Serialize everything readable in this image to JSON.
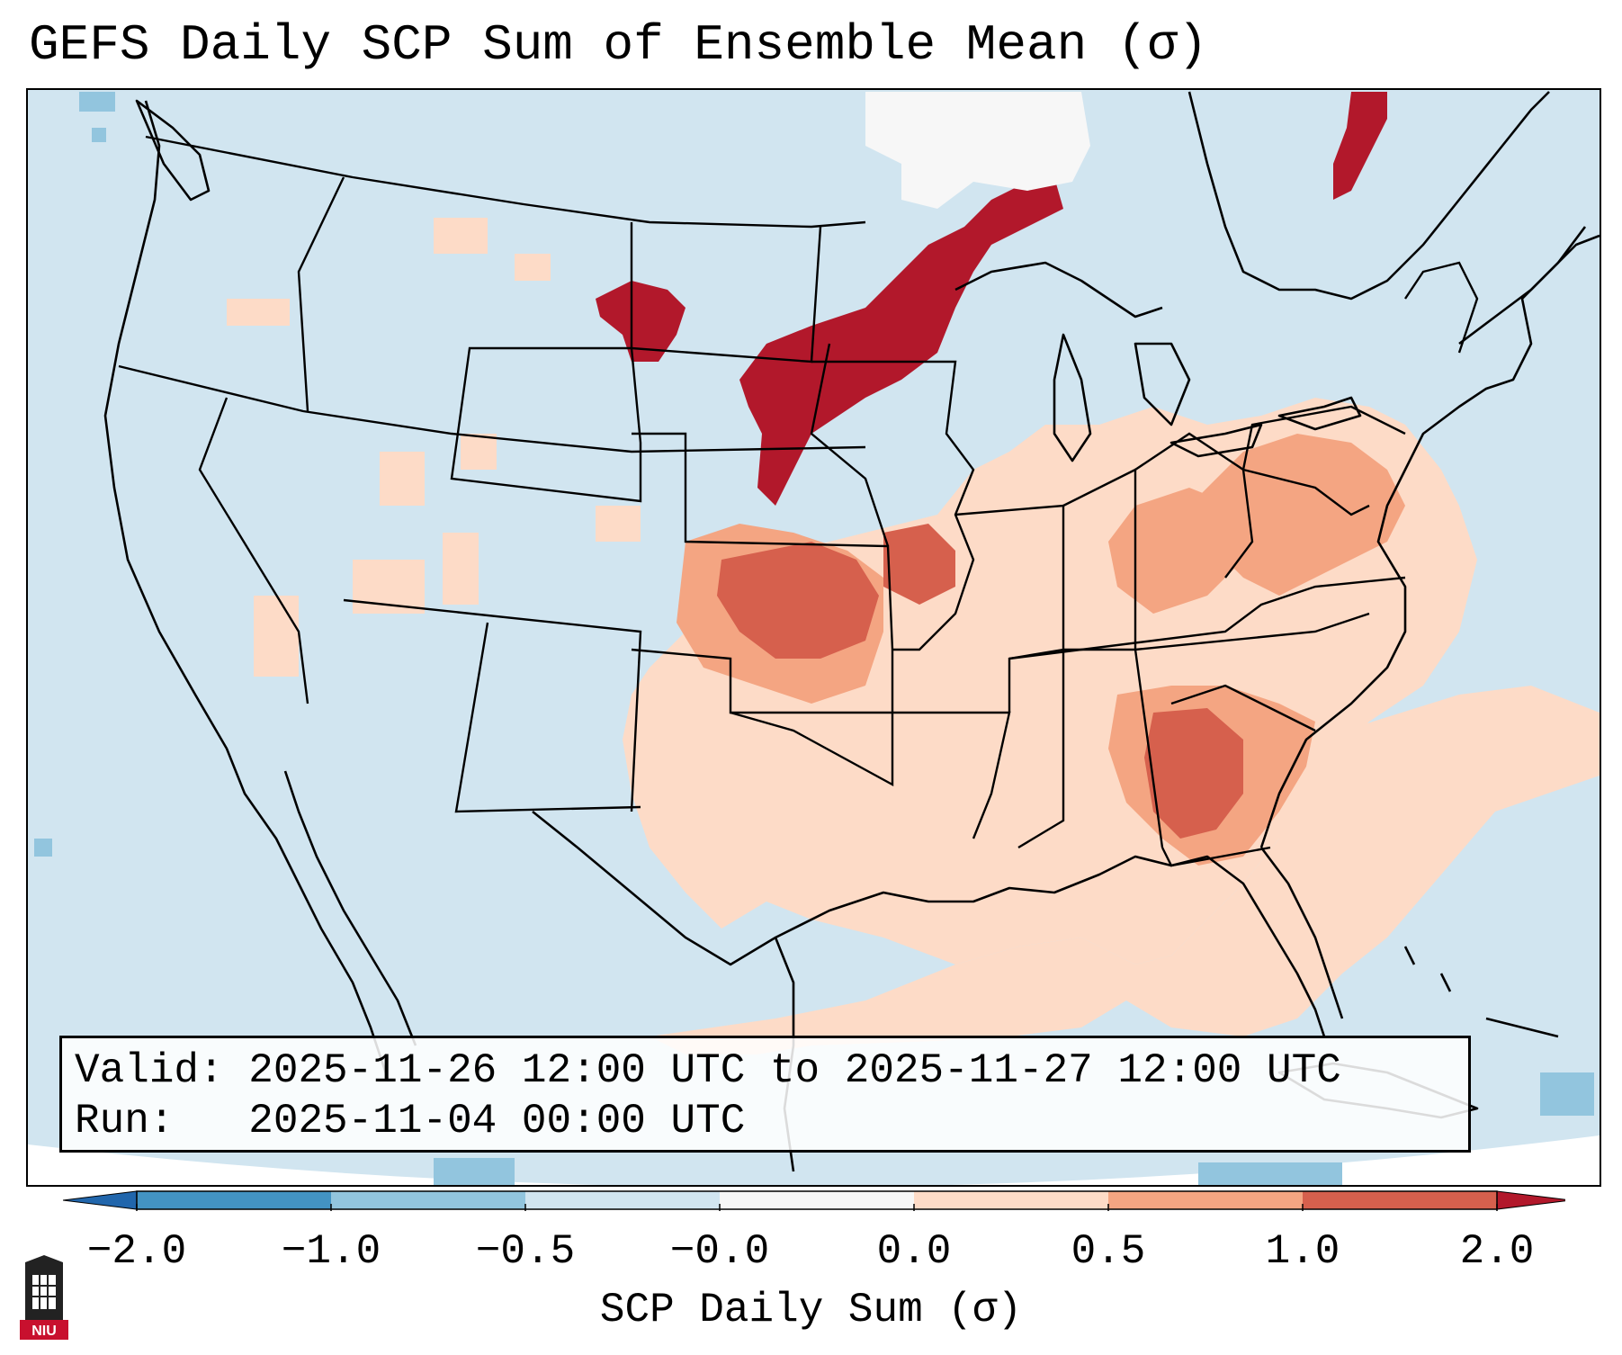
{
  "title": "GEFS Daily SCP Sum of Ensemble Mean (σ)",
  "info": {
    "valid_line": "Valid: 2025-11-26 12:00 UTC to 2025-11-27 12:00 UTC",
    "run_line": "Run:   2025-11-04 00:00 UTC"
  },
  "colorbar": {
    "label": "SCP Daily Sum (σ)",
    "ticks": [
      "−2.0",
      "−1.0",
      "−0.5",
      "−0.0",
      "0.0",
      "0.5",
      "1.0",
      "2.0"
    ],
    "bins": [
      {
        "range": "<-2.0",
        "color": "#2166ac"
      },
      {
        "range": "-2.0 to -1.0",
        "color": "#4393c3"
      },
      {
        "range": "-1.0 to -0.5",
        "color": "#92c5de"
      },
      {
        "range": "-0.5 to -0.0",
        "color": "#d1e5f0"
      },
      {
        "range": "-0.0 to 0.0",
        "color": "#f7f7f7"
      },
      {
        "range": "0.0 to 0.5",
        "color": "#fddbc7"
      },
      {
        "range": "0.5 to 1.0",
        "color": "#f4a582"
      },
      {
        "range": "1.0 to 2.0",
        "color": "#d6604d"
      },
      {
        "range": ">2.0",
        "color": "#b2182b"
      }
    ]
  },
  "map": {
    "background_color": "#d1e5f0",
    "regions": [
      {
        "name": "Northern Plains / Upper Midwest",
        "value_class": ">2.0"
      },
      {
        "name": "Kansas / Oklahoma / Missouri",
        "value_class": "1.0 to 2.0"
      },
      {
        "name": "Georgia",
        "value_class": "1.0 to 2.0"
      },
      {
        "name": "Texas / Lower Mississippi Valley / Southeast",
        "value_class": "0.0 to 0.5"
      },
      {
        "name": "Ohio Valley / Mid-Atlantic",
        "value_class": "0.5 to 1.0"
      },
      {
        "name": "Gulf of Mexico / Western Atlantic",
        "value_class": "0.0 to 0.5"
      },
      {
        "name": "Northern Ontario",
        "value_class": "-0.0 to 0.0"
      }
    ]
  },
  "logo": {
    "text": "NIU"
  }
}
